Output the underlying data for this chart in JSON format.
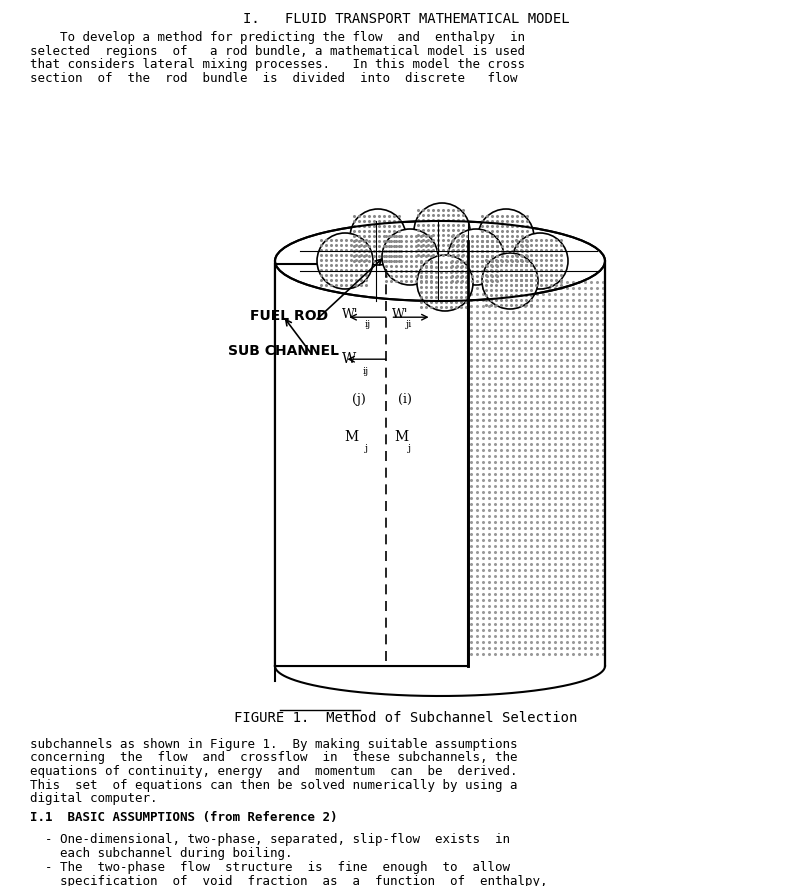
{
  "title": "FIGURE 1.  Method of Subchannel Selection",
  "header_title": "I.   FLUID TRANSPORT MATHEMATICAL MODEL",
  "para1": "    To develop a method for predicting the flow  and  enthalpy  in\nselected  regions  of   a rod bundle, a mathematical model is used\nthat considers lateral mixing processes.   In this model the cross\nsection  of  the  rod  bundle  is  divided  into  discrete   flow",
  "para2": "subchannels as shown in Figure 1.  By making suitable assumptions\nconcerning  the  flow  and  crossflow  in  these subchannels, the\nequations of continuity, energy  and  momentum  can  be  derived.\nThis  set  of equations can then be solved numerically by using a\ndigital computer.",
  "para3_header": "I.1  BASIC ASSUMPTIONS (from Reference 2)",
  "bullet1": "  - One-dimensional, two-phase, separated, slip-flow  exists  in\n    each subchannel during boiling.",
  "bullet2": "  - The  two-phase  flow  structure  is  fine  enough  to  allow\n    specification  of  void  fraction  as  a  function  of  enthalpy,",
  "label_fuelrod": "FUEL ROD",
  "label_subchannel": "SUB CHANNEL",
  "bg_color": "#ffffff",
  "text_color": "#000000",
  "diagram_color": "#000000",
  "stipple_color": "#888888",
  "font_size_body": 9,
  "font_size_labels": 10,
  "font_size_title": 10
}
